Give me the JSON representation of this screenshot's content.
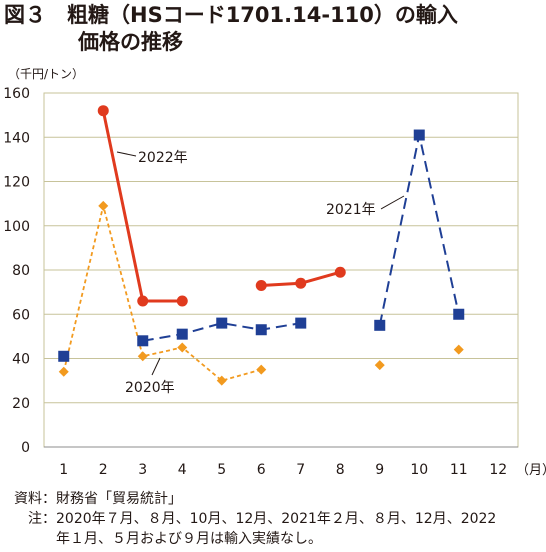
{
  "title": {
    "line1": "図３　粗糖（HSコード1701.14-110）の輸入",
    "line2": "価格の推移"
  },
  "chart_data": {
    "type": "line",
    "unit_label": "（千円/トン）",
    "x_unit_label": "（月）",
    "categories": [
      "1",
      "2",
      "3",
      "4",
      "5",
      "6",
      "7",
      "8",
      "9",
      "10",
      "11",
      "12"
    ],
    "ylim": [
      0,
      160
    ],
    "yticks": [
      0,
      20,
      40,
      60,
      80,
      100,
      120,
      140,
      160
    ],
    "grid": true,
    "series": [
      {
        "name": "2022年",
        "color": "#e03a1e",
        "style": "solid",
        "marker": "circle",
        "values": [
          null,
          152,
          66,
          66,
          null,
          73,
          74,
          79,
          null,
          null,
          null,
          null
        ]
      },
      {
        "name": "2021年",
        "color": "#1f3f95",
        "style": "dashed",
        "marker": "square",
        "values": [
          41,
          null,
          48,
          51,
          56,
          53,
          56,
          null,
          55,
          141,
          60,
          null
        ]
      },
      {
        "name": "2020年",
        "color": "#f29a1f",
        "style": "dotted",
        "marker": "diamond",
        "values": [
          34,
          109,
          41,
          45,
          30,
          35,
          null,
          null,
          37,
          null,
          44,
          null
        ]
      }
    ]
  },
  "notes": {
    "source_label": "資料：",
    "source_text": "財務省「貿易統計」",
    "note_label": "注：",
    "note_line1": "2020年７月、８月、10月、12月、2021年２月、８月、12月、2022",
    "note_line2": "年１月、５月および９月は輸入実績なし。"
  }
}
